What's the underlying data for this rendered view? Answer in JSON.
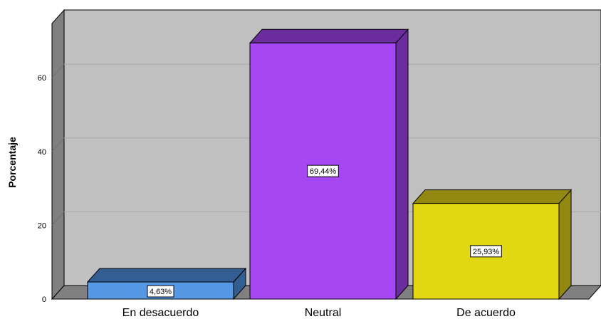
{
  "chart_data": {
    "type": "bar",
    "ylabel": "Porcentaje",
    "ylim": [
      0,
      75
    ],
    "yticks": [
      0,
      20,
      40,
      60
    ],
    "grid": true,
    "categories": [
      "En desacuerdo",
      "Neutral",
      "De acuerdo"
    ],
    "values": [
      4.63,
      69.44,
      25.93
    ],
    "data_labels": [
      "4,63%",
      "69,44%",
      "25,93%"
    ],
    "colors": {
      "front": [
        "#5598e3",
        "#a548f4",
        "#e2d812"
      ],
      "top": [
        "#335e92",
        "#6b2c9e",
        "#938812"
      ],
      "side": [
        "#335e92",
        "#6b2c9e",
        "#938812"
      ],
      "back_wall": "#c0c0c0",
      "left_wall": "#808080",
      "floor": "#808080"
    }
  }
}
